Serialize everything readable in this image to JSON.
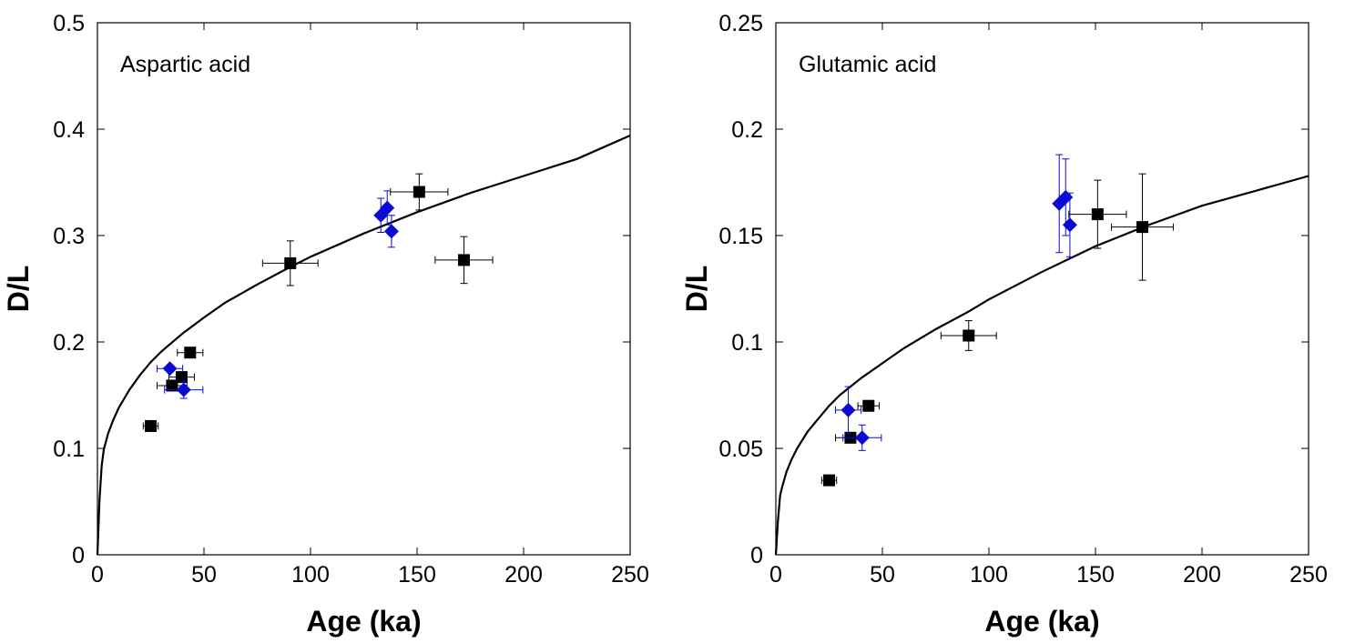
{
  "chart_data": [
    {
      "type": "scatter",
      "panel_label": "Aspartic acid",
      "xlabel": "Age (ka)",
      "ylabel": "D/L",
      "xlim": [
        0,
        250
      ],
      "ylim": [
        0,
        0.5
      ],
      "x_ticks": [
        0,
        50,
        100,
        150,
        200,
        250
      ],
      "x_tick_labels": [
        "0",
        "50",
        "100",
        "150",
        "200",
        "250"
      ],
      "y_ticks": [
        0,
        0.1,
        0.2,
        0.3,
        0.4,
        0.5
      ],
      "y_tick_labels": [
        "0",
        "0.1",
        "0.2",
        "0.3",
        "0.4",
        "0.5"
      ],
      "grid": false,
      "series": [
        {
          "marker": "square",
          "color": "#000000",
          "points": [
            {
              "x": 25,
              "y": 0.121,
              "xerr": 3.5,
              "yerr": 0
            },
            {
              "x": 35,
              "y": 0.159,
              "xerr": 7,
              "yerr": 0
            },
            {
              "x": 39.5,
              "y": 0.167,
              "xerr": 6,
              "yerr": 0
            },
            {
              "x": 43.5,
              "y": 0.19,
              "xerr": 6,
              "yerr": 0
            },
            {
              "x": 90.5,
              "y": 0.274,
              "xerr": 13,
              "yerr": 0.021
            },
            {
              "x": 151,
              "y": 0.341,
              "xerr": 13.5,
              "yerr": 0.017
            },
            {
              "x": 172,
              "y": 0.277,
              "xerr": 13.5,
              "yerr": 0.022
            }
          ]
        },
        {
          "marker": "diamond",
          "color": "#0a0ad2",
          "points": [
            {
              "x": 34,
              "y": 0.175,
              "xerr": 6,
              "yerr": 0
            },
            {
              "x": 40.5,
              "y": 0.155,
              "xerr": 9,
              "yerr": 0.008
            },
            {
              "x": 133,
              "y": 0.319,
              "xerr": 0,
              "yerr": 0.016
            },
            {
              "x": 136,
              "y": 0.326,
              "xerr": 0,
              "yerr": 0.016
            },
            {
              "x": 138,
              "y": 0.304,
              "xerr": 0,
              "yerr": 0.015
            }
          ]
        }
      ],
      "curve": {
        "x": [
          0,
          1,
          2,
          3,
          5,
          7.5,
          10,
          15,
          20,
          25,
          30,
          40,
          50,
          60,
          75,
          90,
          100,
          125,
          150,
          175,
          200,
          225,
          250
        ],
        "y": [
          0,
          0.052,
          0.084,
          0.099,
          0.114,
          0.127,
          0.138,
          0.155,
          0.169,
          0.181,
          0.191,
          0.208,
          0.223,
          0.237,
          0.254,
          0.27,
          0.28,
          0.302,
          0.322,
          0.34,
          0.356,
          0.372,
          0.394
        ]
      }
    },
    {
      "type": "scatter",
      "panel_label": "Glutamic acid",
      "xlabel": "Age (ka)",
      "ylabel": "D/L",
      "xlim": [
        0,
        250
      ],
      "ylim": [
        0,
        0.25
      ],
      "x_ticks": [
        0,
        50,
        100,
        150,
        200,
        250
      ],
      "x_tick_labels": [
        "0",
        "50",
        "100",
        "150",
        "200",
        "250"
      ],
      "y_ticks": [
        0,
        0.05,
        0.1,
        0.15,
        0.2,
        0.25
      ],
      "y_tick_labels": [
        "0",
        "0.05",
        "0.1",
        "0.15",
        "0.2",
        "0.25"
      ],
      "grid": false,
      "series": [
        {
          "marker": "square",
          "color": "#000000",
          "points": [
            {
              "x": 25,
              "y": 0.035,
              "xerr": 3.5,
              "yerr": 0
            },
            {
              "x": 35,
              "y": 0.055,
              "xerr": 7,
              "yerr": 0
            },
            {
              "x": 43.5,
              "y": 0.07,
              "xerr": 5,
              "yerr": 0
            },
            {
              "x": 90.5,
              "y": 0.103,
              "xerr": 13,
              "yerr": 0.007
            },
            {
              "x": 151,
              "y": 0.16,
              "xerr": 13.5,
              "yerr": 0.016
            },
            {
              "x": 172,
              "y": 0.154,
              "xerr": 14.5,
              "yerr": 0.025
            }
          ]
        },
        {
          "marker": "diamond",
          "color": "#0a0ad2",
          "points": [
            {
              "x": 34,
              "y": 0.068,
              "xerr": 6,
              "yerr": 0.011
            },
            {
              "x": 40.5,
              "y": 0.055,
              "xerr": 9,
              "yerr": 0.006
            },
            {
              "x": 133,
              "y": 0.165,
              "xerr": 0,
              "yerr": 0.023
            },
            {
              "x": 136,
              "y": 0.168,
              "xerr": 0,
              "yerr": 0.018
            },
            {
              "x": 138,
              "y": 0.155,
              "xerr": 0,
              "yerr": 0.015
            }
          ]
        }
      ],
      "curve": {
        "x": [
          0,
          1,
          2,
          3,
          5,
          7.5,
          10,
          15,
          20,
          25,
          30,
          40,
          50,
          60,
          75,
          90,
          100,
          125,
          150,
          175,
          200,
          225,
          250
        ],
        "y": [
          0,
          0.016,
          0.028,
          0.032,
          0.039,
          0.045,
          0.05,
          0.058,
          0.064,
          0.07,
          0.075,
          0.083,
          0.09,
          0.097,
          0.106,
          0.114,
          0.12,
          0.133,
          0.145,
          0.155,
          0.164,
          0.171,
          0.178
        ]
      }
    }
  ]
}
